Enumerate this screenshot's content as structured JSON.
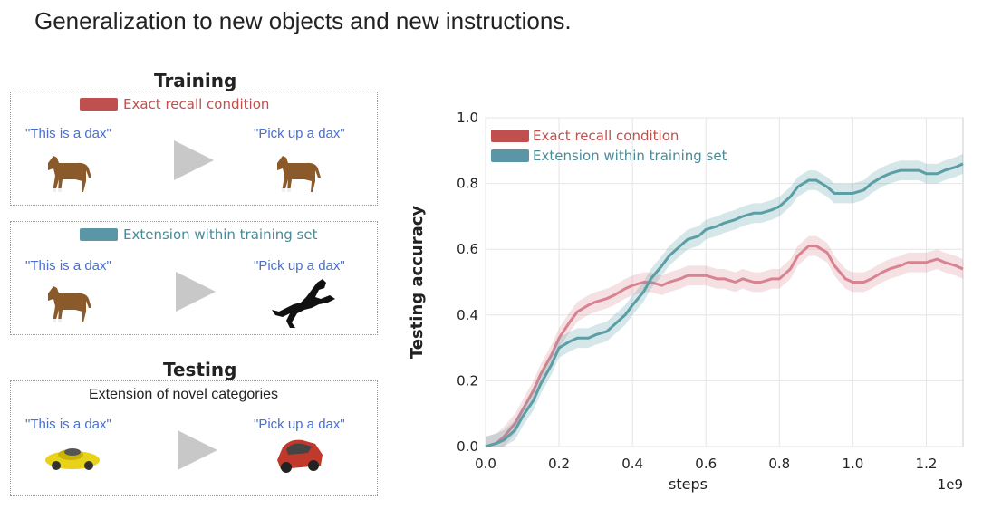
{
  "slide": {
    "title": "Generalization to new objects and new instructions."
  },
  "left_panel": {
    "training_heading": "Training",
    "testing_heading": "Testing",
    "box1": {
      "condition_label": "Exact recall condition",
      "condition_color": "#c0504d",
      "train_phrase": "\"This is a dax\"",
      "test_phrase": "\"Pick up a dax\"",
      "train_object": "brown-horse-icon",
      "test_object": "brown-horse-icon"
    },
    "box2": {
      "condition_label": "Extension within training set",
      "condition_color": "#5b96a7",
      "train_phrase": "\"This is a dax\"",
      "test_phrase": "\"Pick up a dax\"",
      "train_object": "brown-horse-icon",
      "test_object": "black-horse-silhouette-icon"
    },
    "box3": {
      "subheading": "Extension of novel categories",
      "train_phrase": "\"This is a dax\"",
      "test_phrase": "\"Pick up a dax\"",
      "train_object": "yellow-car-icon",
      "test_object": "red-car-icon"
    }
  },
  "chart_data": {
    "type": "line",
    "xlabel": "steps",
    "x_multiplier_label": "1e9",
    "ylabel": "Testing accuracy",
    "xlim": [
      0.0,
      1.3
    ],
    "ylim": [
      0.0,
      1.0
    ],
    "xticks": [
      "0.0",
      "0.2",
      "0.4",
      "0.6",
      "0.8",
      "1.0",
      "1.2"
    ],
    "yticks": [
      "0.0",
      "0.2",
      "0.4",
      "0.6",
      "0.8",
      "1.0"
    ],
    "grid": true,
    "legend_position": "top-left",
    "x": [
      0.0,
      0.03,
      0.05,
      0.08,
      0.1,
      0.13,
      0.15,
      0.18,
      0.2,
      0.23,
      0.25,
      0.28,
      0.3,
      0.33,
      0.35,
      0.38,
      0.4,
      0.43,
      0.45,
      0.48,
      0.5,
      0.53,
      0.55,
      0.58,
      0.6,
      0.63,
      0.65,
      0.68,
      0.7,
      0.73,
      0.75,
      0.78,
      0.8,
      0.83,
      0.85,
      0.88,
      0.9,
      0.93,
      0.95,
      0.98,
      1.0,
      1.03,
      1.05,
      1.08,
      1.1,
      1.13,
      1.15,
      1.18,
      1.2,
      1.23,
      1.25,
      1.28,
      1.3
    ],
    "series": [
      {
        "name": "Exact recall condition",
        "color": "#d98290",
        "band": 0.03,
        "values": [
          0.0,
          0.01,
          0.03,
          0.07,
          0.11,
          0.17,
          0.22,
          0.28,
          0.33,
          0.38,
          0.41,
          0.43,
          0.44,
          0.45,
          0.46,
          0.48,
          0.49,
          0.5,
          0.5,
          0.49,
          0.5,
          0.51,
          0.52,
          0.52,
          0.52,
          0.51,
          0.51,
          0.5,
          0.51,
          0.5,
          0.5,
          0.51,
          0.51,
          0.54,
          0.58,
          0.61,
          0.61,
          0.59,
          0.55,
          0.51,
          0.5,
          0.5,
          0.51,
          0.53,
          0.54,
          0.55,
          0.56,
          0.56,
          0.56,
          0.57,
          0.56,
          0.55,
          0.54
        ]
      },
      {
        "name": "Extension within training set",
        "color": "#5b9ea6",
        "band": 0.03,
        "values": [
          0.0,
          0.01,
          0.02,
          0.05,
          0.09,
          0.14,
          0.19,
          0.25,
          0.3,
          0.32,
          0.33,
          0.33,
          0.34,
          0.35,
          0.37,
          0.4,
          0.43,
          0.47,
          0.51,
          0.55,
          0.58,
          0.61,
          0.63,
          0.64,
          0.66,
          0.67,
          0.68,
          0.69,
          0.7,
          0.71,
          0.71,
          0.72,
          0.73,
          0.76,
          0.79,
          0.81,
          0.81,
          0.79,
          0.77,
          0.77,
          0.77,
          0.78,
          0.8,
          0.82,
          0.83,
          0.84,
          0.84,
          0.84,
          0.83,
          0.83,
          0.84,
          0.85,
          0.86
        ]
      }
    ]
  }
}
